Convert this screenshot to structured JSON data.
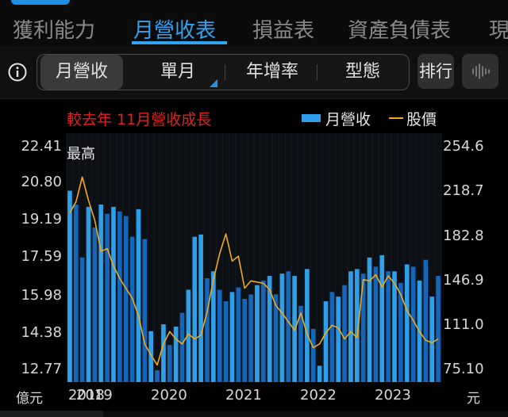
{
  "tabs": {
    "items": [
      "獲利能力",
      "月營收表",
      "損益表",
      "資產負債表",
      "現"
    ],
    "active": 1
  },
  "filters": {
    "items": [
      "月營收",
      "單月",
      "年增率",
      "型態"
    ],
    "active": 0,
    "rank_label": "排行"
  },
  "colors": {
    "accent": "#2fa2f0",
    "bar_current_year": "#2e9fe8",
    "bar_other": "#1565b8",
    "price_line": "#f0a91c",
    "title_red": "#e02020"
  },
  "chart_data": {
    "type": "bar",
    "title": "較去年 11月營收成長",
    "legend": {
      "revenue": "月營收",
      "price": "股價"
    },
    "max_label": "最高",
    "y_left_unit": "億元",
    "y_right_unit": "元",
    "y_left_ticks": [
      "22.41",
      "20.80",
      "19.19",
      "17.59",
      "15.98",
      "14.38",
      "12.77"
    ],
    "y_right_ticks": [
      "254.6",
      "218.7",
      "182.8",
      "146.9",
      "111.0",
      "75.10"
    ],
    "y_left_range": [
      12.77,
      22.41
    ],
    "y_right_range": [
      75.1,
      254.6
    ],
    "x_tick_labels": [
      "2018",
      "2019",
      "2020",
      "2021",
      "2022",
      "2023"
    ],
    "series": [
      {
        "name": "月營收",
        "values": [
          20.6,
          20.0,
          17.7,
          19.9,
          19.0,
          20.0,
          19.6,
          19.9,
          19.7,
          19.5,
          18.6,
          19.8,
          18.5,
          14.5,
          12.8,
          14.8,
          13.9,
          14.7,
          15.3,
          16.3,
          18.6,
          18.7,
          16.8,
          17.1,
          16.3,
          15.8,
          16.2,
          16.4,
          15.9,
          16.1,
          16.5,
          16.7,
          16.9,
          16.1,
          17.0,
          17.1,
          16.9,
          15.6,
          17.2,
          14.6,
          13.0,
          15.8,
          16.2,
          16.0,
          16.5,
          17.1,
          17.2,
          17.0,
          17.7,
          17.3,
          17.8,
          17.1,
          17.1,
          16.6,
          17.4,
          17.3,
          16.7,
          17.6,
          16.0,
          16.9
        ],
        "highlight": [
          true,
          false,
          false,
          true,
          false,
          true,
          false,
          true,
          false,
          false,
          false,
          true,
          false,
          true,
          false,
          true,
          false,
          true,
          false,
          true,
          true,
          true,
          false,
          true,
          false,
          false,
          true,
          false,
          false,
          false,
          true,
          false,
          true,
          false,
          true,
          false,
          true,
          false,
          true,
          false,
          true,
          true,
          false,
          true,
          false,
          true,
          true,
          false,
          true,
          false,
          true,
          false,
          true,
          false,
          true,
          false,
          true,
          false,
          true,
          false
        ]
      },
      {
        "name": "股價",
        "values": [
          203,
          212,
          232,
          213,
          197,
          172,
          174,
          160,
          150,
          142,
          134,
          120,
          97,
          88,
          80,
          97,
          107,
          101,
          97,
          105,
          101,
          104,
          123,
          149,
          170,
          186,
          164,
          168,
          142,
          148,
          147,
          146,
          141,
          128,
          122,
          115,
          108,
          122,
          105,
          94,
          97,
          106,
          112,
          110,
          101,
          107,
          102,
          149,
          148,
          153,
          143,
          152,
          146,
          137,
          124,
          116,
          107,
          100,
          98,
          101
        ]
      }
    ]
  }
}
